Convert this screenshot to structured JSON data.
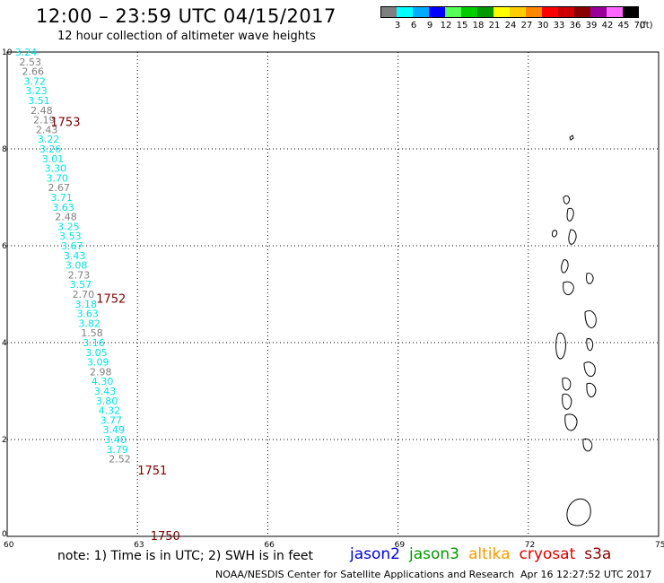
{
  "header": {
    "title": "12:00 – 23:59 UTC 04/15/2017",
    "subtitle": "12 hour collection of altimeter wave heights"
  },
  "colorbar": {
    "unit_label": "(ft)",
    "bins": [
      {
        "label": "3",
        "color": "#7f7f7f"
      },
      {
        "label": "6",
        "color": "#00ffff"
      },
      {
        "label": "9",
        "color": "#00aaff"
      },
      {
        "label": "12",
        "color": "#0000ff"
      },
      {
        "label": "15",
        "color": "#55ff55"
      },
      {
        "label": "18",
        "color": "#00cc00"
      },
      {
        "label": "21",
        "color": "#009900"
      },
      {
        "label": "24",
        "color": "#ffff00"
      },
      {
        "label": "27",
        "color": "#ffcc00"
      },
      {
        "label": "30",
        "color": "#ff8800"
      },
      {
        "label": "33",
        "color": "#ff0000"
      },
      {
        "label": "36",
        "color": "#cc0000"
      },
      {
        "label": "39",
        "color": "#880000"
      },
      {
        "label": "42",
        "color": "#990099"
      },
      {
        "label": "45",
        "color": "#ff66ff"
      },
      {
        "label": "70",
        "color": "#000000"
      }
    ]
  },
  "map": {
    "lon_ticks": [
      "60",
      "63",
      "66",
      "69",
      "72",
      "75"
    ],
    "lat_ticks": [
      "0",
      "2",
      "4",
      "6",
      "8",
      "10"
    ],
    "lon_range": [
      60,
      75
    ],
    "lat_range": [
      0,
      10
    ],
    "grid": "dotted",
    "pass_labels": [
      {
        "text": "1753",
        "lat": 8.55,
        "lon": 61.0
      },
      {
        "text": "1752",
        "lat": 4.9,
        "lon": 62.05
      },
      {
        "text": "1751",
        "lat": 1.35,
        "lon": 63.0
      },
      {
        "text": "1750",
        "lat": 0.0,
        "lon": 63.3
      }
    ],
    "observations": [
      {
        "value": "3.24",
        "lat": 10.0,
        "lon": 60.18,
        "color": "#00e5e5"
      },
      {
        "value": "2.53",
        "lat": 9.8,
        "lon": 60.28,
        "color": "#7f7f7f"
      },
      {
        "value": "2.66",
        "lat": 9.6,
        "lon": 60.34,
        "color": "#7f7f7f"
      },
      {
        "value": "3.72",
        "lat": 9.4,
        "lon": 60.38,
        "color": "#00e5e5"
      },
      {
        "value": "3.23",
        "lat": 9.2,
        "lon": 60.42,
        "color": "#00e5e5"
      },
      {
        "value": "3.51",
        "lat": 9.0,
        "lon": 60.48,
        "color": "#00e5e5"
      },
      {
        "value": "2.48",
        "lat": 8.8,
        "lon": 60.54,
        "color": "#7f7f7f"
      },
      {
        "value": "2.19",
        "lat": 8.6,
        "lon": 60.6,
        "color": "#7f7f7f"
      },
      {
        "value": "2.43",
        "lat": 8.4,
        "lon": 60.66,
        "color": "#7f7f7f"
      },
      {
        "value": "3.22",
        "lat": 8.2,
        "lon": 60.7,
        "color": "#00e5e5"
      },
      {
        "value": "3.26",
        "lat": 8.0,
        "lon": 60.74,
        "color": "#00e5e5"
      },
      {
        "value": "3.01",
        "lat": 7.8,
        "lon": 60.8,
        "color": "#00e5e5"
      },
      {
        "value": "3.30",
        "lat": 7.6,
        "lon": 60.86,
        "color": "#00e5e5"
      },
      {
        "value": "3.70",
        "lat": 7.4,
        "lon": 60.9,
        "color": "#00e5e5"
      },
      {
        "value": "2.67",
        "lat": 7.2,
        "lon": 60.94,
        "color": "#7f7f7f"
      },
      {
        "value": "3.71",
        "lat": 7.0,
        "lon": 61.0,
        "color": "#00e5e5"
      },
      {
        "value": "3.63",
        "lat": 6.8,
        "lon": 61.04,
        "color": "#00e5e5"
      },
      {
        "value": "2.48",
        "lat": 6.6,
        "lon": 61.1,
        "color": "#7f7f7f"
      },
      {
        "value": "3.25",
        "lat": 6.4,
        "lon": 61.16,
        "color": "#00e5e5"
      },
      {
        "value": "3.53",
        "lat": 6.2,
        "lon": 61.2,
        "color": "#00e5e5"
      },
      {
        "value": "3.67",
        "lat": 6.0,
        "lon": 61.24,
        "color": "#00e5e5"
      },
      {
        "value": "3.43",
        "lat": 5.8,
        "lon": 61.3,
        "color": "#00e5e5"
      },
      {
        "value": "3.08",
        "lat": 5.6,
        "lon": 61.34,
        "color": "#00e5e5"
      },
      {
        "value": "2.73",
        "lat": 5.4,
        "lon": 61.4,
        "color": "#7f7f7f"
      },
      {
        "value": "3.57",
        "lat": 5.2,
        "lon": 61.44,
        "color": "#00e5e5"
      },
      {
        "value": "2.70",
        "lat": 5.0,
        "lon": 61.5,
        "color": "#7f7f7f"
      },
      {
        "value": "3.18",
        "lat": 4.8,
        "lon": 61.56,
        "color": "#00e5e5"
      },
      {
        "value": "3.63",
        "lat": 4.6,
        "lon": 61.6,
        "color": "#00e5e5"
      },
      {
        "value": "3.82",
        "lat": 4.4,
        "lon": 61.64,
        "color": "#00e5e5"
      },
      {
        "value": "1.58",
        "lat": 4.2,
        "lon": 61.7,
        "color": "#7f7f7f"
      },
      {
        "value": "3.16",
        "lat": 4.0,
        "lon": 61.74,
        "color": "#00e5e5"
      },
      {
        "value": "3.05",
        "lat": 3.8,
        "lon": 61.8,
        "color": "#00e5e5"
      },
      {
        "value": "3.09",
        "lat": 3.6,
        "lon": 61.84,
        "color": "#00e5e5"
      },
      {
        "value": "2.98",
        "lat": 3.4,
        "lon": 61.9,
        "color": "#7f7f7f"
      },
      {
        "value": "4.30",
        "lat": 3.2,
        "lon": 61.94,
        "color": "#00e5e5"
      },
      {
        "value": "3.43",
        "lat": 3.0,
        "lon": 62.0,
        "color": "#00e5e5"
      },
      {
        "value": "3.80",
        "lat": 2.8,
        "lon": 62.04,
        "color": "#00e5e5"
      },
      {
        "value": "4.32",
        "lat": 2.6,
        "lon": 62.1,
        "color": "#00e5e5"
      },
      {
        "value": "3.77",
        "lat": 2.4,
        "lon": 62.14,
        "color": "#00e5e5"
      },
      {
        "value": "3.49",
        "lat": 2.2,
        "lon": 62.2,
        "color": "#00e5e5"
      },
      {
        "value": "3.40",
        "lat": 2.0,
        "lon": 62.24,
        "color": "#00e5e5"
      },
      {
        "value": "3.79",
        "lat": 1.8,
        "lon": 62.28,
        "color": "#00e5e5"
      },
      {
        "value": "2.52",
        "lat": 1.6,
        "lon": 62.34,
        "color": "#7f7f7f"
      }
    ]
  },
  "footer": {
    "note": "note: 1) Time is in UTC; 2) SWH is in feet",
    "legend": [
      {
        "name": "jason2",
        "color": "#0000dd"
      },
      {
        "name": "jason3",
        "color": "#009900"
      },
      {
        "name": "altika",
        "color": "#ff9900"
      },
      {
        "name": "cryosat",
        "color": "#dd0000"
      },
      {
        "name": "s3a",
        "color": "#880000"
      }
    ],
    "credit": "NOAA/NESDIS Center for Satellite Applications and Research",
    "timestamp": "Apr 16 12:27:52 UTC 2017"
  }
}
